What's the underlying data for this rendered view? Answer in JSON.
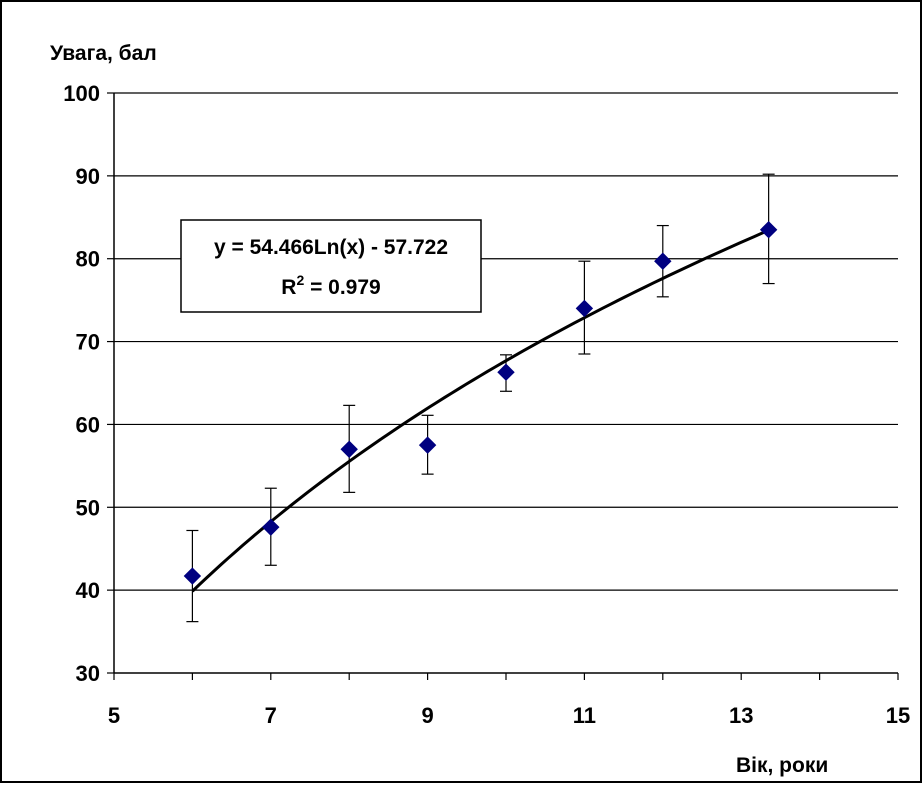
{
  "chart_data": {
    "type": "scatter",
    "ylabel": "Увага, бал",
    "xlabel": "Вік, роки",
    "xlim": [
      5,
      15
    ],
    "ylim": [
      30,
      100
    ],
    "x_ticks": [
      5,
      7,
      9,
      11,
      13,
      15
    ],
    "y_ticks": [
      30,
      40,
      50,
      60,
      70,
      80,
      90,
      100
    ],
    "grid": "horizontal",
    "series": [
      {
        "marker": "diamond",
        "color": "#000080",
        "points": [
          {
            "x": 6,
            "y": 41.7,
            "err_low": 36.2,
            "err_high": 47.2
          },
          {
            "x": 7,
            "y": 47.6,
            "err_low": 43.0,
            "err_high": 52.3
          },
          {
            "x": 8,
            "y": 57.0,
            "err_low": 51.8,
            "err_high": 62.3
          },
          {
            "x": 9,
            "y": 57.5,
            "err_low": 54.0,
            "err_high": 61.1
          },
          {
            "x": 10,
            "y": 66.3,
            "err_low": 64.0,
            "err_high": 68.4
          },
          {
            "x": 11,
            "y": 74.0,
            "err_low": 68.5,
            "err_high": 79.7
          },
          {
            "x": 12,
            "y": 79.7,
            "err_low": 75.4,
            "err_high": 84.0
          },
          {
            "x": 13.35,
            "y": 83.5,
            "err_low": 77.0,
            "err_high": 90.2
          }
        ]
      }
    ],
    "trendline": {
      "type": "logarithmic",
      "a": 54.466,
      "b": -57.722,
      "x_from": 6,
      "x_to": 13.35,
      "equation_label": "y = 54.466Ln(x) - 57.722",
      "r2_label_prefix": "R",
      "r2_label_sup": "2",
      "r2_label_value": " = 0.979"
    }
  }
}
